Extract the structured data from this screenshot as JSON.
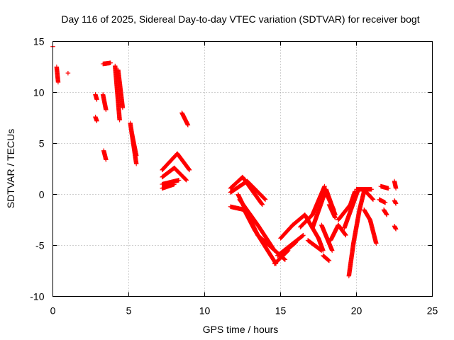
{
  "chart_data": {
    "type": "scatter",
    "title": "Day 116 of 2025, Sidereal Day-to-day VTEC variation (SDTVAR) for receiver bogt",
    "xlabel": "GPS time / hours",
    "ylabel": "SDTVAR / TECUs",
    "xlim": [
      0,
      25
    ],
    "ylim": [
      -10,
      15
    ],
    "xticks": [
      0,
      5,
      10,
      15,
      20,
      25
    ],
    "yticks": [
      -10,
      -5,
      0,
      5,
      10,
      15
    ],
    "grid": true,
    "marker": "+",
    "marker_color": "#ff0000",
    "series": [
      {
        "name": "SDTVAR",
        "segments": [
          {
            "x0": 0.0,
            "y0": 14.5,
            "x1": 0.0,
            "y1": 14.5
          },
          {
            "x0": 0.25,
            "y0": 12.5,
            "x1": 0.35,
            "y1": 11.0
          },
          {
            "x0": 1.0,
            "y0": 11.9,
            "x1": 1.0,
            "y1": 11.9
          },
          {
            "x0": 2.8,
            "y0": 9.8,
            "x1": 2.9,
            "y1": 9.3
          },
          {
            "x0": 2.8,
            "y0": 7.6,
            "x1": 2.9,
            "y1": 7.2
          },
          {
            "x0": 3.3,
            "y0": 9.8,
            "x1": 3.5,
            "y1": 8.3
          },
          {
            "x0": 3.3,
            "y0": 12.8,
            "x1": 3.8,
            "y1": 12.9
          },
          {
            "x0": 3.35,
            "y0": 4.3,
            "x1": 3.5,
            "y1": 3.4
          },
          {
            "x0": 4.1,
            "y0": 12.6,
            "x1": 4.4,
            "y1": 7.3
          },
          {
            "x0": 4.3,
            "y0": 12.2,
            "x1": 4.6,
            "y1": 8.5
          },
          {
            "x0": 5.1,
            "y0": 7.0,
            "x1": 5.5,
            "y1": 3.0
          },
          {
            "x0": 5.2,
            "y0": 6.0,
            "x1": 5.5,
            "y1": 3.8
          },
          {
            "x0": 7.2,
            "y0": 2.4,
            "x1": 8.2,
            "y1": 4.0
          },
          {
            "x0": 8.2,
            "y0": 4.0,
            "x1": 9.0,
            "y1": 2.4
          },
          {
            "x0": 7.2,
            "y0": 1.7,
            "x1": 8.0,
            "y1": 2.6
          },
          {
            "x0": 8.0,
            "y0": 2.6,
            "x1": 8.8,
            "y1": 1.4
          },
          {
            "x0": 7.2,
            "y0": 1.0,
            "x1": 8.3,
            "y1": 1.4
          },
          {
            "x0": 7.2,
            "y0": 0.6,
            "x1": 8.0,
            "y1": 1.0
          },
          {
            "x0": 8.5,
            "y0": 8.0,
            "x1": 8.9,
            "y1": 6.8
          },
          {
            "x0": 11.7,
            "y0": 0.6,
            "x1": 12.5,
            "y1": 1.7
          },
          {
            "x0": 12.5,
            "y0": 1.7,
            "x1": 13.8,
            "y1": -1.0
          },
          {
            "x0": 11.7,
            "y0": 0.2,
            "x1": 12.8,
            "y1": 1.3
          },
          {
            "x0": 12.8,
            "y0": 1.3,
            "x1": 14.0,
            "y1": -0.5
          },
          {
            "x0": 11.7,
            "y0": -1.2,
            "x1": 12.6,
            "y1": -1.5
          },
          {
            "x0": 12.6,
            "y0": -1.5,
            "x1": 13.3,
            "y1": -3.5
          },
          {
            "x0": 13.3,
            "y0": -3.5,
            "x1": 14.7,
            "y1": -6.8
          },
          {
            "x0": 12.3,
            "y0": -0.5,
            "x1": 13.5,
            "y1": -3.0
          },
          {
            "x0": 13.5,
            "y0": -3.0,
            "x1": 14.6,
            "y1": -5.5
          },
          {
            "x0": 12.2,
            "y0": 0.0,
            "x1": 13.5,
            "y1": -4.0
          },
          {
            "x0": 13.5,
            "y0": -4.0,
            "x1": 15.3,
            "y1": -6.4
          },
          {
            "x0": 14.6,
            "y0": -6.8,
            "x1": 15.5,
            "y1": -5.5
          },
          {
            "x0": 15.0,
            "y0": -4.3,
            "x1": 15.8,
            "y1": -3.0
          },
          {
            "x0": 15.8,
            "y0": -3.0,
            "x1": 16.6,
            "y1": -2.0
          },
          {
            "x0": 14.8,
            "y0": -6.0,
            "x1": 16.5,
            "y1": -4.0
          },
          {
            "x0": 15.3,
            "y0": -5.6,
            "x1": 16.0,
            "y1": -4.7
          },
          {
            "x0": 16.6,
            "y0": -2.0,
            "x1": 17.5,
            "y1": -4.3
          },
          {
            "x0": 17.5,
            "y0": -4.3,
            "x1": 17.8,
            "y1": -5.5
          },
          {
            "x0": 16.3,
            "y0": -3.2,
            "x1": 17.1,
            "y1": -2.0
          },
          {
            "x0": 17.1,
            "y0": -2.0,
            "x1": 17.9,
            "y1": 0.8
          },
          {
            "x0": 17.1,
            "y0": -3.3,
            "x1": 18.0,
            "y1": 0.5
          },
          {
            "x0": 18.0,
            "y0": 0.5,
            "x1": 18.6,
            "y1": -2.0
          },
          {
            "x0": 17.7,
            "y0": -3.0,
            "x1": 18.4,
            "y1": -5.5
          },
          {
            "x0": 17.8,
            "y0": -6.0,
            "x1": 18.2,
            "y1": -6.5
          },
          {
            "x0": 16.8,
            "y0": -4.5,
            "x1": 17.7,
            "y1": -5.5
          },
          {
            "x0": 17.9,
            "y0": 0.5,
            "x1": 18.5,
            "y1": -1.5
          },
          {
            "x0": 18.3,
            "y0": -4.5,
            "x1": 18.8,
            "y1": -3.0
          },
          {
            "x0": 18.8,
            "y0": -3.0,
            "x1": 19.3,
            "y1": -4.0
          },
          {
            "x0": 18.2,
            "y0": -1.0,
            "x1": 18.6,
            "y1": -2.3
          },
          {
            "x0": 18.8,
            "y0": -2.5,
            "x1": 19.6,
            "y1": -1.0
          },
          {
            "x0": 19.6,
            "y0": -1.0,
            "x1": 19.9,
            "y1": 0.3
          },
          {
            "x0": 19.2,
            "y0": -3.3,
            "x1": 20.1,
            "y1": 0.4
          },
          {
            "x0": 19.5,
            "y0": -8.0,
            "x1": 19.8,
            "y1": -4.8
          },
          {
            "x0": 19.8,
            "y0": -4.8,
            "x1": 20.2,
            "y1": -1.5
          },
          {
            "x0": 20.2,
            "y0": -1.5,
            "x1": 20.5,
            "y1": 0.3
          },
          {
            "x0": 20.0,
            "y0": 0.5,
            "x1": 21.0,
            "y1": 0.5
          },
          {
            "x0": 20.5,
            "y0": -1.5,
            "x1": 20.9,
            "y1": -2.5
          },
          {
            "x0": 20.9,
            "y0": -2.5,
            "x1": 21.3,
            "y1": -4.8
          },
          {
            "x0": 20.6,
            "y0": 0.3,
            "x1": 21.1,
            "y1": -0.5
          },
          {
            "x0": 21.5,
            "y0": -0.5,
            "x1": 21.9,
            "y1": -0.8
          },
          {
            "x0": 21.8,
            "y0": -1.5,
            "x1": 22.0,
            "y1": -2.0
          },
          {
            "x0": 21.6,
            "y0": 0.8,
            "x1": 22.1,
            "y1": 0.6
          },
          {
            "x0": 22.5,
            "y0": 1.3,
            "x1": 22.6,
            "y1": 0.6
          },
          {
            "x0": 22.5,
            "y0": -0.6,
            "x1": 22.6,
            "y1": -0.9
          },
          {
            "x0": 22.5,
            "y0": -3.1,
            "x1": 22.6,
            "y1": -3.4
          }
        ]
      }
    ]
  }
}
